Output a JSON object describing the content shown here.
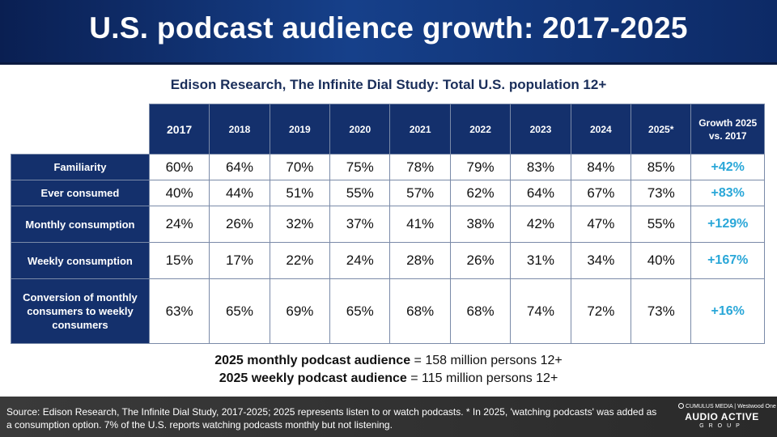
{
  "title": "U.S. podcast audience growth: 2017-2025",
  "subtitle": "Edison Research, The Infinite Dial Study: Total U.S. population 12+",
  "chart_data": {
    "type": "table",
    "columns": [
      "2017",
      "2018",
      "2019",
      "2020",
      "2021",
      "2022",
      "2023",
      "2024",
      "2025*"
    ],
    "growth_header": "Growth 2025 vs. 2017",
    "rows": [
      {
        "label": "Familiarity",
        "values": [
          "60%",
          "64%",
          "70%",
          "75%",
          "78%",
          "79%",
          "83%",
          "84%",
          "85%"
        ],
        "growth": "+42%"
      },
      {
        "label": "Ever consumed",
        "values": [
          "40%",
          "44%",
          "51%",
          "55%",
          "57%",
          "62%",
          "64%",
          "67%",
          "73%"
        ],
        "growth": "+83%"
      },
      {
        "label": "Monthly consumption",
        "values": [
          "24%",
          "26%",
          "32%",
          "37%",
          "41%",
          "38%",
          "42%",
          "47%",
          "55%"
        ],
        "growth": "+129%"
      },
      {
        "label": "Weekly consumption",
        "values": [
          "15%",
          "17%",
          "22%",
          "24%",
          "28%",
          "26%",
          "31%",
          "34%",
          "40%"
        ],
        "growth": "+167%"
      },
      {
        "label": "Conversion of monthly consumers to weekly consumers",
        "values": [
          "63%",
          "65%",
          "69%",
          "65%",
          "68%",
          "68%",
          "74%",
          "72%",
          "73%"
        ],
        "growth": "+16%"
      }
    ]
  },
  "notes": {
    "monthly_bold": "2025 monthly podcast audience",
    "monthly_rest": " = 158 million persons 12+",
    "weekly_bold": "2025 weekly podcast audience",
    "weekly_rest": " = 115 million persons 12+"
  },
  "footer": {
    "source": "Source: Edison Research, The Infinite Dial Study, 2017-2025; 2025 represents listen to or watch podcasts. * In 2025, 'watching podcasts' was added as a consumption option. 7% of the U.S. reports watching podcasts monthly but not listening."
  },
  "logo": {
    "top_left": "CUMULUS MEDIA",
    "top_right": "Westwood One",
    "main": "AUDIO ACTIVE",
    "sub": "GROUP"
  },
  "colors": {
    "header_bg": "#14306c",
    "growth_text": "#2aa7d8",
    "footer_bg": "#333333"
  }
}
